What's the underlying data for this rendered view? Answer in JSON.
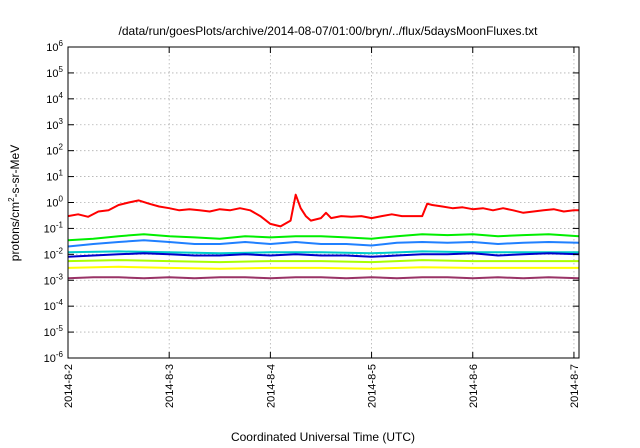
{
  "chart_data": {
    "type": "line",
    "title": "/data/run/goesPlots/archive/2014-08-07/01:00/bryn/../flux/5daysMoonFluxes.txt",
    "xlabel": "Coordinated Universal Time (UTC)",
    "ylabel_base": "protons/cm",
    "ylabel_sup": "2",
    "ylabel_rest": "-s-sr-MeV",
    "yscale": "log",
    "ylim": [
      1e-06,
      1000000.0
    ],
    "xlim_days": [
      0,
      5.05
    ],
    "grid": true,
    "x_ticks": [
      "2014-8-2",
      "2014-8-3",
      "2014-8-4",
      "2014-8-5",
      "2014-8-6",
      "2014-8-7"
    ],
    "y_ticks": [
      {
        "value": 1000000.0,
        "base": "10",
        "exp": "6"
      },
      {
        "value": 100000.0,
        "base": "10",
        "exp": "5"
      },
      {
        "value": 10000.0,
        "base": "10",
        "exp": "4"
      },
      {
        "value": 1000.0,
        "base": "10",
        "exp": "3"
      },
      {
        "value": 100.0,
        "base": "10",
        "exp": "2"
      },
      {
        "value": 10.0,
        "base": "10",
        "exp": "1"
      },
      {
        "value": 1.0,
        "base": "10",
        "exp": "0"
      },
      {
        "value": 0.1,
        "base": "10",
        "exp": "-1"
      },
      {
        "value": 0.01,
        "base": "10",
        "exp": "-2"
      },
      {
        "value": 0.001,
        "base": "10",
        "exp": "-3"
      },
      {
        "value": 0.0001,
        "base": "10",
        "exp": "-4"
      },
      {
        "value": 1e-05,
        "base": "10",
        "exp": "-5"
      },
      {
        "value": 1e-06,
        "base": "10",
        "exp": "-6"
      }
    ],
    "series": [
      {
        "color": "#ff0000",
        "x": [
          0,
          0.1,
          0.2,
          0.3,
          0.4,
          0.5,
          0.6,
          0.7,
          0.8,
          0.9,
          1.0,
          1.1,
          1.2,
          1.3,
          1.4,
          1.5,
          1.6,
          1.7,
          1.8,
          1.9,
          2.0,
          2.1,
          2.2,
          2.25,
          2.3,
          2.35,
          2.4,
          2.5,
          2.55,
          2.6,
          2.7,
          2.8,
          2.9,
          3.0,
          3.1,
          3.2,
          3.3,
          3.4,
          3.5,
          3.55,
          3.6,
          3.7,
          3.8,
          3.9,
          4.0,
          4.1,
          4.2,
          4.3,
          4.4,
          4.5,
          4.6,
          4.7,
          4.8,
          4.9,
          5.0,
          5.05
        ],
        "y": [
          0.3,
          0.35,
          0.28,
          0.45,
          0.5,
          0.8,
          1.0,
          1.2,
          0.9,
          0.7,
          0.6,
          0.5,
          0.55,
          0.5,
          0.45,
          0.55,
          0.5,
          0.6,
          0.5,
          0.3,
          0.15,
          0.12,
          0.2,
          2.0,
          0.6,
          0.3,
          0.2,
          0.25,
          0.4,
          0.25,
          0.3,
          0.28,
          0.3,
          0.25,
          0.3,
          0.35,
          0.3,
          0.3,
          0.3,
          0.9,
          0.8,
          0.7,
          0.6,
          0.65,
          0.55,
          0.6,
          0.5,
          0.6,
          0.5,
          0.4,
          0.45,
          0.5,
          0.55,
          0.45,
          0.5,
          0.5
        ]
      },
      {
        "color": "#00ee00",
        "x": [
          0,
          0.25,
          0.5,
          0.75,
          1.0,
          1.25,
          1.5,
          1.75,
          2.0,
          2.25,
          2.5,
          2.75,
          3.0,
          3.25,
          3.5,
          3.75,
          4.0,
          4.25,
          4.5,
          4.75,
          5.05
        ],
        "y": [
          0.035,
          0.04,
          0.05,
          0.06,
          0.05,
          0.045,
          0.04,
          0.05,
          0.045,
          0.05,
          0.05,
          0.045,
          0.04,
          0.05,
          0.06,
          0.055,
          0.06,
          0.05,
          0.055,
          0.06,
          0.05
        ]
      },
      {
        "color": "#2080ff",
        "x": [
          0,
          0.25,
          0.5,
          0.75,
          1.0,
          1.25,
          1.5,
          1.75,
          2.0,
          2.25,
          2.5,
          2.75,
          3.0,
          3.25,
          3.5,
          3.75,
          4.0,
          4.25,
          4.5,
          4.75,
          5.05
        ],
        "y": [
          0.02,
          0.025,
          0.03,
          0.035,
          0.03,
          0.025,
          0.025,
          0.03,
          0.025,
          0.03,
          0.025,
          0.025,
          0.022,
          0.028,
          0.03,
          0.028,
          0.03,
          0.025,
          0.028,
          0.03,
          0.028
        ]
      },
      {
        "color": "#00cccc",
        "x": [
          0,
          0.5,
          1.0,
          1.5,
          2.0,
          2.5,
          3.0,
          3.5,
          4.0,
          4.5,
          5.05
        ],
        "y": [
          0.012,
          0.013,
          0.012,
          0.011,
          0.012,
          0.012,
          0.011,
          0.013,
          0.012,
          0.012,
          0.012
        ]
      },
      {
        "color": "#0000cc",
        "x": [
          0,
          0.25,
          0.5,
          0.75,
          1.0,
          1.25,
          1.5,
          1.75,
          2.0,
          2.25,
          2.5,
          2.75,
          3.0,
          3.25,
          3.5,
          3.75,
          4.0,
          4.25,
          4.5,
          4.75,
          5.05
        ],
        "y": [
          0.008,
          0.009,
          0.01,
          0.011,
          0.01,
          0.009,
          0.009,
          0.01,
          0.009,
          0.01,
          0.009,
          0.009,
          0.008,
          0.009,
          0.01,
          0.01,
          0.011,
          0.009,
          0.01,
          0.011,
          0.01
        ]
      },
      {
        "color": "#aaff00",
        "x": [
          0,
          0.5,
          1.0,
          1.5,
          2.0,
          2.5,
          3.0,
          3.5,
          4.0,
          4.5,
          5.05
        ],
        "y": [
          0.0055,
          0.006,
          0.0055,
          0.005,
          0.0055,
          0.0055,
          0.005,
          0.006,
          0.0055,
          0.0055,
          0.0055
        ]
      },
      {
        "color": "#ffff00",
        "x": [
          0,
          0.5,
          1.0,
          1.5,
          2.0,
          2.5,
          3.0,
          3.5,
          4.0,
          4.5,
          5.05
        ],
        "y": [
          0.003,
          0.0033,
          0.003,
          0.0028,
          0.003,
          0.003,
          0.0028,
          0.0032,
          0.003,
          0.003,
          0.003
        ]
      },
      {
        "color": "#993366",
        "x": [
          0,
          0.25,
          0.5,
          0.75,
          1.0,
          1.25,
          1.5,
          1.75,
          2.0,
          2.25,
          2.5,
          2.75,
          3.0,
          3.25,
          3.5,
          3.75,
          4.0,
          4.25,
          4.5,
          4.75,
          5.05
        ],
        "y": [
          0.0012,
          0.0013,
          0.0013,
          0.0012,
          0.0013,
          0.0012,
          0.0013,
          0.0013,
          0.0012,
          0.0013,
          0.0013,
          0.0012,
          0.0013,
          0.0012,
          0.0013,
          0.0013,
          0.0012,
          0.0013,
          0.0012,
          0.0013,
          0.0012
        ]
      }
    ]
  }
}
